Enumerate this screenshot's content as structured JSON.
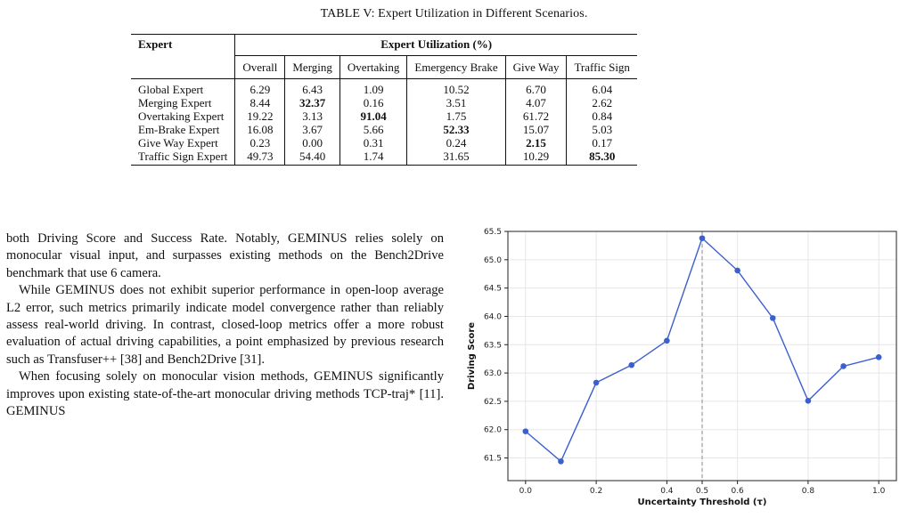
{
  "table": {
    "caption": "TABLE V: Expert Utilization in Different Scenarios.",
    "expert_header": "Expert",
    "group_header": "Expert Utilization (%)",
    "columns": [
      "Overall",
      "Merging",
      "Overtaking",
      "Emergency Brake",
      "Give Way",
      "Traffic Sign"
    ],
    "rows": [
      {
        "expert": "Global Expert",
        "values": [
          "6.29",
          "6.43",
          "1.09",
          "10.52",
          "6.70",
          "6.04"
        ],
        "bold": []
      },
      {
        "expert": "Merging Expert",
        "values": [
          "8.44",
          "32.37",
          "0.16",
          "3.51",
          "4.07",
          "2.62"
        ],
        "bold": [
          1
        ]
      },
      {
        "expert": "Overtaking Expert",
        "values": [
          "19.22",
          "3.13",
          "91.04",
          "1.75",
          "61.72",
          "0.84"
        ],
        "bold": [
          2
        ]
      },
      {
        "expert": "Em-Brake Expert",
        "values": [
          "16.08",
          "3.67",
          "5.66",
          "52.33",
          "15.07",
          "5.03"
        ],
        "bold": [
          3
        ]
      },
      {
        "expert": "Give Way Expert",
        "values": [
          "0.23",
          "0.00",
          "0.31",
          "0.24",
          "2.15",
          "0.17"
        ],
        "bold": [
          4
        ]
      },
      {
        "expert": "Traffic Sign Expert",
        "values": [
          "49.73",
          "54.40",
          "1.74",
          "31.65",
          "10.29",
          "85.30"
        ],
        "bold": [
          5
        ]
      }
    ]
  },
  "body_text": {
    "p1": "both Driving Score and Success Rate. Notably, GEMINUS relies solely on monocular visual input, and surpasses existing methods on the Bench2Drive benchmark that use 6 camera.",
    "p2": "While GEMINUS does not exhibit superior performance in open-loop average L2 error, such metrics primarily indicate model convergence rather than reliably assess real-world driving. In contrast, closed-loop metrics offer a more robust evaluation of actual driving capabilities, a point emphasized by previous research such as Transfuser++ [38] and Bench2Drive [31].",
    "p3": "When focusing solely on monocular vision methods, GEMINUS significantly improves upon existing state-of-the-art monocular driving methods TCP-traj* [11]. GEMINUS"
  },
  "chart_data": {
    "type": "line",
    "xlabel": "Uncertainty Threshold (τ)",
    "ylabel": "Driving Score",
    "x": [
      0.0,
      0.1,
      0.2,
      0.3,
      0.4,
      0.5,
      0.6,
      0.7,
      0.8,
      0.9,
      1.0
    ],
    "values": [
      61.97,
      61.44,
      62.83,
      63.14,
      63.57,
      65.38,
      64.81,
      63.97,
      62.51,
      63.12,
      63.28
    ],
    "xlim": [
      -0.05,
      1.05
    ],
    "ylim": [
      61.1,
      65.5
    ],
    "xticks": [
      "0.0",
      "0.2",
      "0.4",
      "0.5",
      "0.6",
      "0.8",
      "1.0"
    ],
    "xtick_values": [
      0.0,
      0.2,
      0.4,
      0.5,
      0.6,
      0.8,
      1.0
    ],
    "yticks": [
      "61.5",
      "62.0",
      "62.5",
      "63.0",
      "63.5",
      "64.0",
      "64.5",
      "65.0",
      "65.5"
    ],
    "ytick_values": [
      61.5,
      62.0,
      62.5,
      63.0,
      63.5,
      64.0,
      64.5,
      65.0,
      65.5
    ],
    "highlight_x": 0.5,
    "grid": true,
    "line_color": "#3b5fcf",
    "highlight_color": "#8a8a8a"
  }
}
